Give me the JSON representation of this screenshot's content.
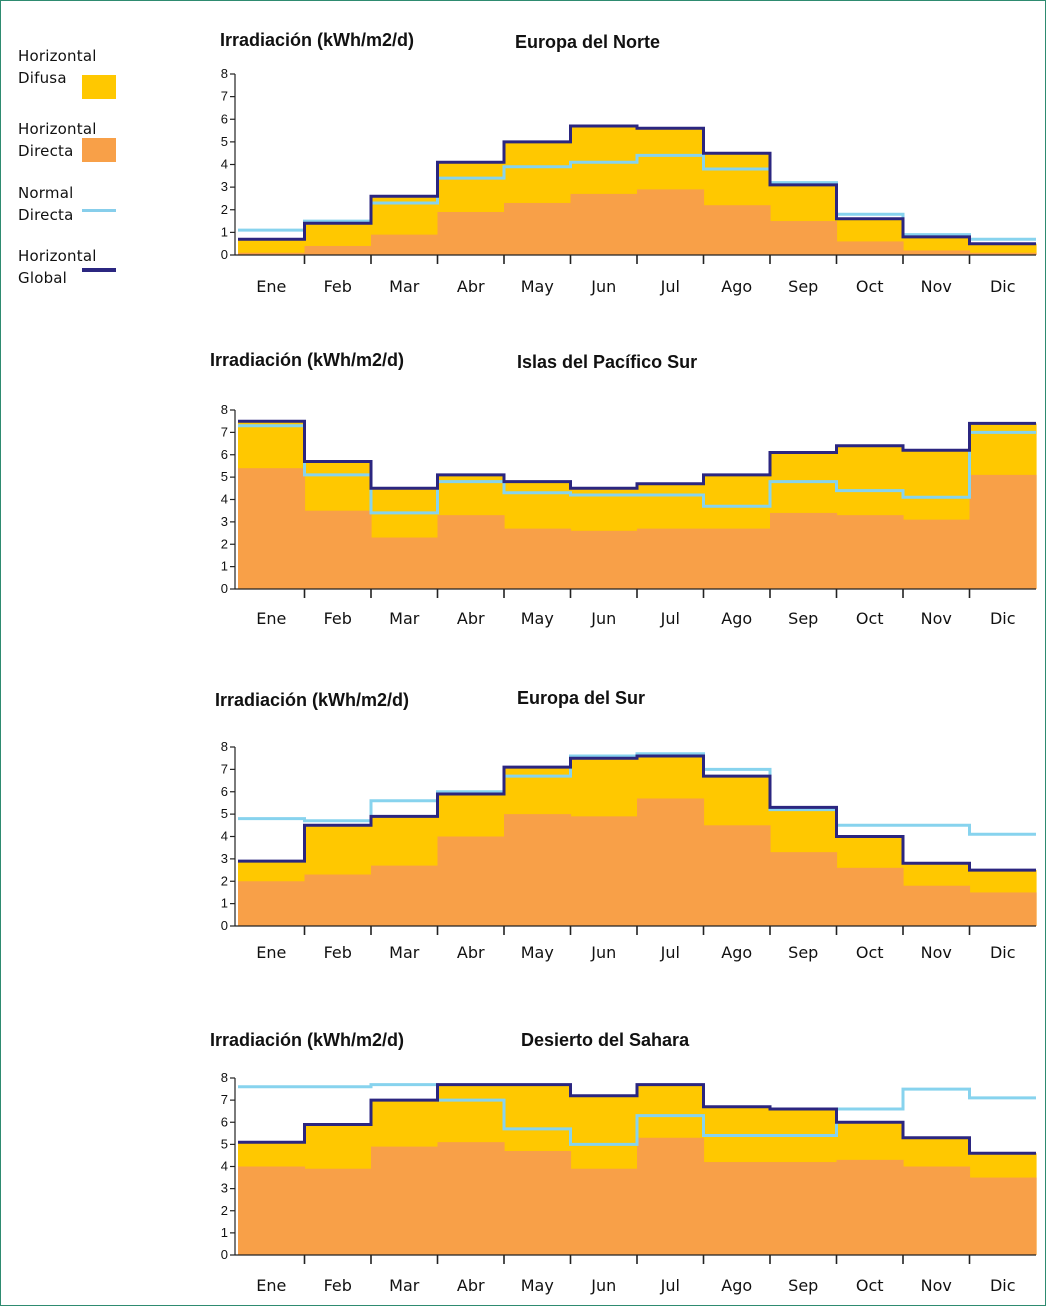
{
  "legend": {
    "items": [
      {
        "label": "Horizontal\nDifusa",
        "color": "#ffc800",
        "kind": "box"
      },
      {
        "label": "Horizontal\nDirecta",
        "color": "#f8a048",
        "kind": "box"
      },
      {
        "label": "Normal\nDirecta",
        "color": "#87ceeb",
        "kind": "line"
      },
      {
        "label": "Horizontal\nGlobal",
        "color": "#2b2680",
        "kind": "line"
      }
    ]
  },
  "colors": {
    "difusa": "#ffc800",
    "directa": "#f8a048",
    "normal_directa": "#87d3ee",
    "global": "#2b2680",
    "axis": "#222222",
    "frame": "#2e8b70"
  },
  "chart_data": [
    {
      "type": "area",
      "title": "Europa del Norte",
      "ylabel": "Irradiación (kWh/m2/d)",
      "categories": [
        "Ene",
        "Feb",
        "Mar",
        "Abr",
        "May",
        "Jun",
        "Jul",
        "Ago",
        "Sep",
        "Oct",
        "Nov",
        "Dic"
      ],
      "ylim": [
        0,
        8
      ],
      "yticks": [
        0,
        1,
        2,
        3,
        4,
        5,
        6,
        7,
        8
      ],
      "grid": false,
      "series": [
        {
          "name": "Horizontal Global",
          "values": [
            0.7,
            1.4,
            2.6,
            4.1,
            5.0,
            5.7,
            5.6,
            4.5,
            3.1,
            1.6,
            0.8,
            0.5
          ]
        },
        {
          "name": "Horizontal Directa",
          "values": [
            0.1,
            0.4,
            0.9,
            1.9,
            2.3,
            2.7,
            2.9,
            2.2,
            1.5,
            0.6,
            0.2,
            0.1
          ]
        },
        {
          "name": "Normal Directa",
          "values": [
            1.1,
            1.5,
            2.3,
            3.4,
            3.9,
            4.1,
            4.4,
            3.8,
            3.2,
            1.8,
            0.9,
            0.7
          ]
        }
      ]
    },
    {
      "type": "area",
      "title": "Islas del Pacífico Sur",
      "ylabel": "Irradiación (kWh/m2/d)",
      "categories": [
        "Ene",
        "Feb",
        "Mar",
        "Abr",
        "May",
        "Jun",
        "Jul",
        "Ago",
        "Sep",
        "Oct",
        "Nov",
        "Dic"
      ],
      "ylim": [
        0,
        8
      ],
      "yticks": [
        0,
        1,
        2,
        3,
        4,
        5,
        6,
        7,
        8
      ],
      "grid": false,
      "series": [
        {
          "name": "Horizontal Global",
          "values": [
            7.5,
            5.7,
            4.5,
            5.1,
            4.8,
            4.5,
            4.7,
            5.1,
            6.1,
            6.4,
            6.2,
            7.4
          ]
        },
        {
          "name": "Horizontal Directa",
          "values": [
            5.4,
            3.5,
            2.3,
            3.3,
            2.7,
            2.6,
            2.7,
            2.7,
            3.4,
            3.3,
            3.1,
            5.1
          ]
        },
        {
          "name": "Normal Directa",
          "values": [
            7.3,
            5.1,
            3.4,
            4.8,
            4.3,
            4.2,
            4.2,
            3.7,
            4.8,
            4.4,
            4.1,
            7.0
          ]
        }
      ]
    },
    {
      "type": "area",
      "title": "Europa del Sur",
      "ylabel": "Irradiación (kWh/m2/d)",
      "categories": [
        "Ene",
        "Feb",
        "Mar",
        "Abr",
        "May",
        "Jun",
        "Jul",
        "Ago",
        "Sep",
        "Oct",
        "Nov",
        "Dic"
      ],
      "ylim": [
        0,
        8
      ],
      "yticks": [
        0,
        1,
        2,
        3,
        4,
        5,
        6,
        7,
        8
      ],
      "grid": false,
      "series": [
        {
          "name": "Horizontal Global",
          "values": [
            2.9,
            4.5,
            4.9,
            5.9,
            7.1,
            7.5,
            7.6,
            6.7,
            5.3,
            4.0,
            2.8,
            2.5
          ]
        },
        {
          "name": "Horizontal Directa",
          "values": [
            2.0,
            2.3,
            2.7,
            4.0,
            5.0,
            4.9,
            5.7,
            4.5,
            3.3,
            2.6,
            1.8,
            1.5
          ]
        },
        {
          "name": "Normal Directa",
          "values": [
            4.8,
            4.7,
            5.6,
            6.0,
            6.7,
            7.6,
            7.7,
            7.0,
            5.2,
            4.5,
            4.5,
            4.1
          ]
        }
      ]
    },
    {
      "type": "area",
      "title": "Desierto del Sahara",
      "ylabel": "Irradiación (kWh/m2/d)",
      "categories": [
        "Ene",
        "Feb",
        "Mar",
        "Abr",
        "May",
        "Jun",
        "Jul",
        "Ago",
        "Sep",
        "Oct",
        "Nov",
        "Dic"
      ],
      "ylim": [
        0,
        8
      ],
      "yticks": [
        0,
        1,
        2,
        3,
        4,
        5,
        6,
        7,
        8
      ],
      "grid": false,
      "series": [
        {
          "name": "Horizontal Global",
          "values": [
            5.1,
            5.9,
            7.0,
            7.7,
            7.7,
            7.2,
            7.7,
            6.7,
            6.6,
            6.0,
            5.3,
            4.6
          ]
        },
        {
          "name": "Horizontal Directa",
          "values": [
            4.0,
            3.9,
            4.9,
            5.1,
            4.7,
            3.9,
            5.3,
            4.2,
            4.2,
            4.3,
            4.0,
            3.5
          ]
        },
        {
          "name": "Normal Directa",
          "values": [
            7.6,
            7.6,
            7.7,
            7.0,
            5.7,
            5.0,
            6.3,
            5.4,
            5.4,
            6.6,
            7.5,
            7.1
          ]
        }
      ]
    }
  ]
}
